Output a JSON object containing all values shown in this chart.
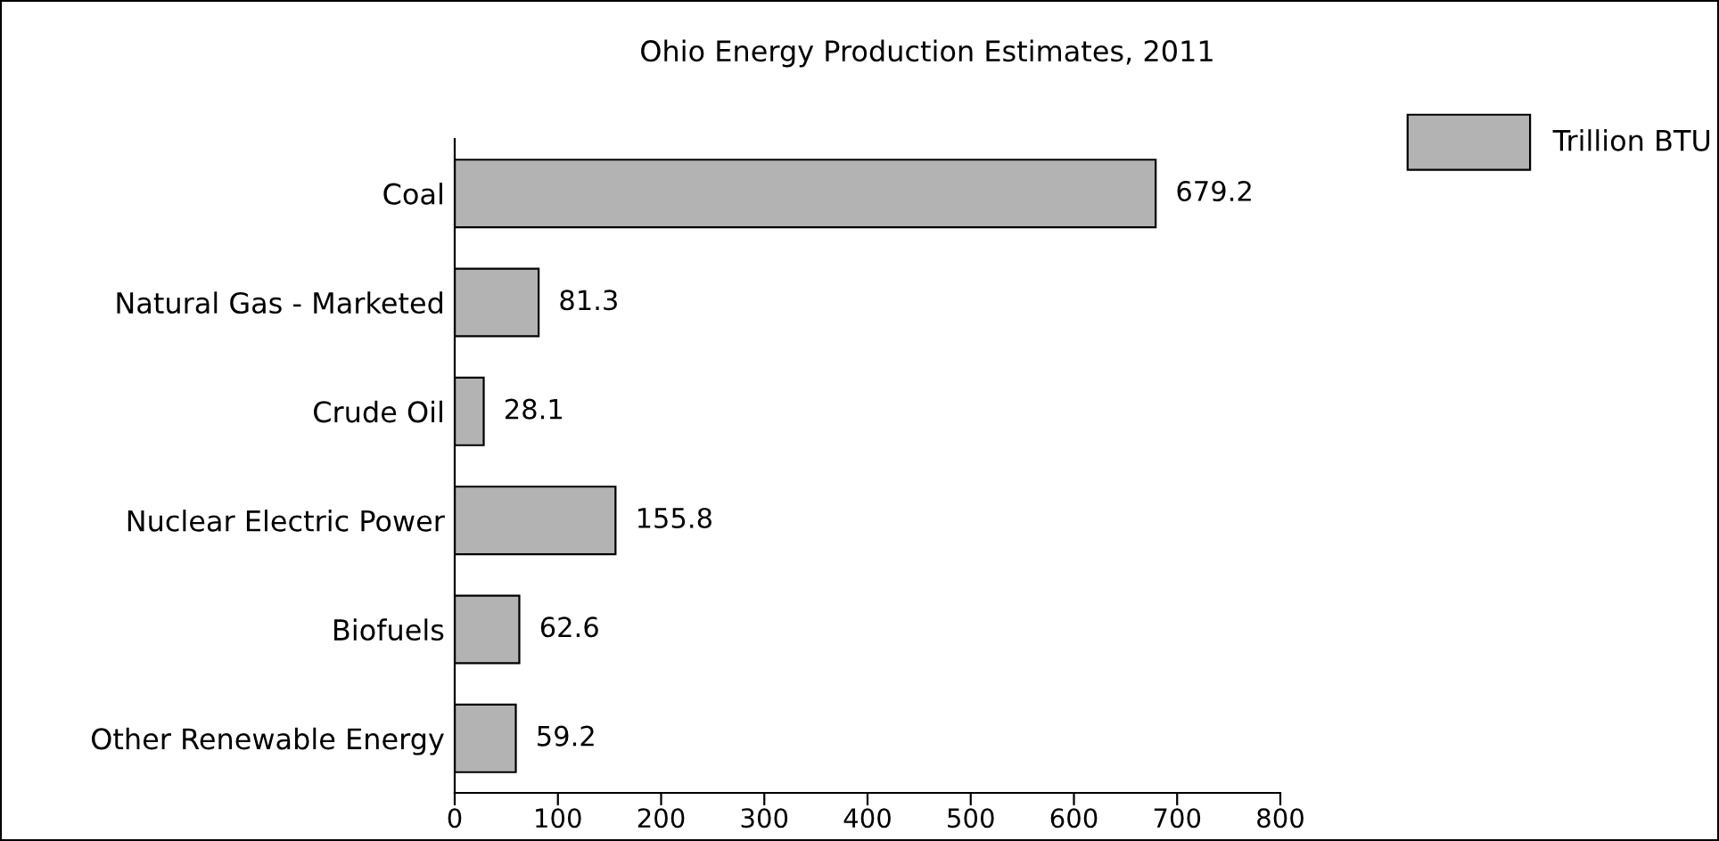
{
  "chart_data": {
    "type": "bar",
    "orientation": "horizontal",
    "title": "Ohio Energy Production Estimates, 2011",
    "categories": [
      "Coal",
      "Natural Gas - Marketed",
      "Crude Oil",
      "Nuclear Electric Power",
      "Biofuels",
      "Other Renewable Energy"
    ],
    "series": [
      {
        "name": "Trillion BTU",
        "color": "#b3b3b3",
        "values": [
          679.2,
          81.3,
          28.1,
          155.8,
          62.6,
          59.2
        ]
      }
    ],
    "xlim": [
      0,
      800
    ],
    "xticks": [
      0,
      100,
      200,
      300,
      400,
      500,
      600,
      700,
      800
    ],
    "data_labels": true,
    "legend": "top right",
    "grid": false
  }
}
